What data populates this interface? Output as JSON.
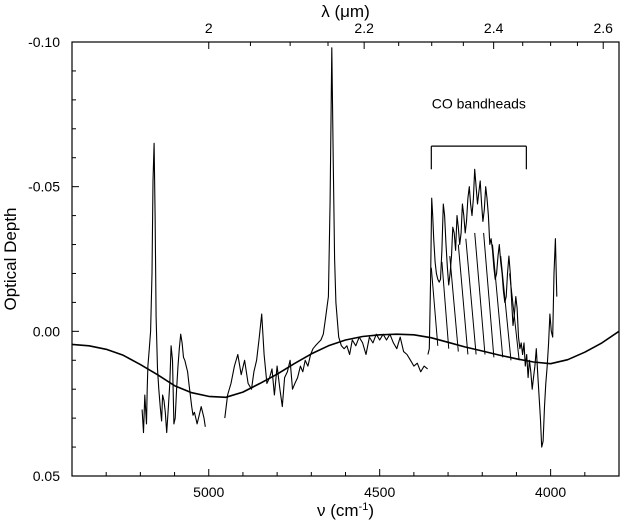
{
  "chart_data": {
    "type": "line",
    "title": "",
    "xlabel": "ν (cm",
    "xlabel_sup": "-1",
    "xlabel_close": ")",
    "top_xlabel": "λ (μm)",
    "ylabel": "Optical Depth",
    "xlim": [
      5400,
      3800
    ],
    "ylim": [
      0.05,
      -0.1
    ],
    "y_inverted": true,
    "grid": false,
    "x_ticks": [
      5000,
      4500,
      4000
    ],
    "x_tick_labels": [
      "5000",
      "4500",
      "4000"
    ],
    "y_ticks": [
      -0.1,
      -0.05,
      0.0,
      0.05
    ],
    "y_tick_labels": [
      "-0.10",
      "-0.05",
      "0.00",
      "0.05"
    ],
    "top_ticks": [
      2.0,
      2.2,
      2.4,
      2.6
    ],
    "top_tick_labels": [
      "2",
      "2.2",
      "2.4",
      "2.6"
    ],
    "annotation": {
      "text": "CO bandheads",
      "bracket_x": [
        4349,
        4071
      ],
      "bracket_y": -0.064,
      "bracket_tick": 0.008,
      "text_x": 4210,
      "text_y": -0.077
    },
    "series": [
      {
        "style": "smooth",
        "x": [
          5400,
          5350,
          5300,
          5250,
          5200,
          5150,
          5100,
          5050,
          5000,
          4950,
          4900,
          4850,
          4800,
          4750,
          4700,
          4650,
          4600,
          4550,
          4500,
          4450,
          4400,
          4350,
          4300,
          4250,
          4200,
          4150,
          4100,
          4050,
          4000,
          3950,
          3900,
          3850,
          3800
        ],
        "y": [
          0.0045,
          0.005,
          0.0062,
          0.0083,
          0.0115,
          0.015,
          0.0188,
          0.0212,
          0.0225,
          0.0228,
          0.021,
          0.018,
          0.0148,
          0.0112,
          0.0078,
          0.005,
          0.003,
          0.0018,
          0.0012,
          0.001,
          0.0012,
          0.0022,
          0.0038,
          0.0054,
          0.0068,
          0.0082,
          0.0095,
          0.0106,
          0.0112,
          0.0098,
          0.0072,
          0.004,
          0.0
        ]
      },
      {
        "style": "observed",
        "x": [
          5195,
          5191,
          5187,
          5182,
          5180,
          5178,
          5174,
          5170,
          5166,
          5163,
          5160,
          5157,
          5154,
          5150,
          5146,
          5142,
          5138,
          5135,
          5131,
          5127,
          5123,
          5118,
          5114,
          5110,
          5106,
          5102,
          5098,
          5094,
          5090,
          5086,
          5082,
          5078,
          5074,
          5070,
          5066,
          5062,
          5058,
          5054,
          5050,
          5046,
          5042,
          5038,
          5034,
          5030,
          5026,
          5022,
          5018,
          5014,
          5010
        ],
        "y": [
          0.027,
          0.035,
          0.022,
          0.032,
          0.02,
          0.012,
          0.006,
          0.0,
          -0.02,
          -0.052,
          -0.065,
          -0.04,
          -0.005,
          0.013,
          0.02,
          0.026,
          0.031,
          0.022,
          0.024,
          0.028,
          0.035,
          0.026,
          0.018,
          0.005,
          0.01,
          0.032,
          0.03,
          0.02,
          0.012,
          0.006,
          0.001,
          0.004,
          0.009,
          0.01,
          0.012,
          0.014,
          0.018,
          0.022,
          0.026,
          0.029,
          0.028,
          0.03,
          0.032,
          0.03,
          0.028,
          0.026,
          0.028,
          0.03,
          0.033
        ]
      },
      {
        "style": "observed",
        "x": [
          4953,
          4945,
          4935,
          4925,
          4915,
          4905,
          4895,
          4885,
          4875,
          4868,
          4860,
          4852,
          4845,
          4838,
          4830,
          4822,
          4815,
          4808,
          4800,
          4792,
          4785,
          4778,
          4770,
          4762,
          4755,
          4748,
          4740,
          4732,
          4725,
          4718,
          4710,
          4702,
          4695,
          4688,
          4680,
          4672,
          4665,
          4658,
          4650,
          4645,
          4640,
          4636,
          4632,
          4628,
          4624,
          4620,
          4612,
          4604,
          4596,
          4588,
          4580,
          4570,
          4560,
          4550,
          4540,
          4530,
          4520,
          4510,
          4500,
          4490,
          4480,
          4470,
          4460,
          4450,
          4440,
          4430,
          4420,
          4410,
          4400,
          4390,
          4380,
          4370,
          4360
        ],
        "y": [
          0.03,
          0.022,
          0.018,
          0.012,
          0.008,
          0.015,
          0.01,
          0.018,
          0.02,
          0.014,
          0.01,
          0.002,
          -0.006,
          0.008,
          0.018,
          0.016,
          0.013,
          0.022,
          0.012,
          0.02,
          0.026,
          0.016,
          0.014,
          0.01,
          0.02,
          0.018,
          0.016,
          0.012,
          0.014,
          0.01,
          0.012,
          0.008,
          0.006,
          0.005,
          0.004,
          0.003,
          0.001,
          -0.005,
          -0.012,
          -0.045,
          -0.098,
          -0.06,
          -0.025,
          -0.01,
          -0.004,
          0.002,
          0.005,
          0.006,
          0.005,
          0.008,
          0.003,
          0.005,
          0.002,
          0.004,
          0.008,
          0.002,
          0.004,
          0.001,
          0.003,
          0.001,
          0.003,
          0.001,
          0.004,
          0.006,
          0.002,
          0.007,
          0.008,
          0.01,
          0.012,
          0.011,
          0.014,
          0.012,
          0.013
        ]
      },
      {
        "style": "observed",
        "x": [
          4359,
          4355,
          4351,
          4348,
          4345,
          4342,
          4338,
          4334,
          4330,
          4326,
          4322,
          4318,
          4314,
          4310,
          4306,
          4302,
          4298,
          4294,
          4290,
          4286,
          4282,
          4278,
          4274,
          4270,
          4266,
          4262,
          4258,
          4254,
          4250,
          4246,
          4242,
          4238,
          4234,
          4230,
          4226,
          4222,
          4218,
          4214,
          4210,
          4206,
          4202,
          4198,
          4194,
          4190,
          4186,
          4182,
          4178,
          4174,
          4170,
          4166,
          4162,
          4158,
          4154,
          4150,
          4146,
          4142,
          4138,
          4134,
          4130,
          4126,
          4122,
          4118,
          4114,
          4110,
          4106,
          4102,
          4098,
          4094,
          4090,
          4086,
          4082,
          4078,
          4074,
          4070,
          4066,
          4062,
          4058,
          4054,
          4050,
          4046,
          4042,
          4038,
          4034,
          4030,
          4026,
          4022,
          4018,
          4014,
          4010,
          4006,
          4002,
          3998,
          3994,
          3990,
          3986,
          3982
        ],
        "y": [
          0.008,
          0.006,
          -0.018,
          -0.046,
          -0.04,
          -0.032,
          -0.024,
          -0.02,
          -0.018,
          -0.017,
          -0.018,
          -0.028,
          -0.044,
          -0.04,
          -0.03,
          -0.022,
          -0.016,
          -0.02,
          -0.026,
          -0.036,
          -0.034,
          -0.028,
          -0.04,
          -0.036,
          -0.03,
          -0.034,
          -0.044,
          -0.04,
          -0.034,
          -0.038,
          -0.046,
          -0.05,
          -0.044,
          -0.04,
          -0.046,
          -0.056,
          -0.05,
          -0.044,
          -0.048,
          -0.052,
          -0.044,
          -0.038,
          -0.042,
          -0.05,
          -0.046,
          -0.04,
          -0.03,
          -0.032,
          -0.028,
          -0.022,
          -0.018,
          -0.02,
          -0.026,
          -0.03,
          -0.024,
          -0.02,
          -0.014,
          -0.01,
          -0.012,
          -0.02,
          -0.026,
          -0.02,
          -0.01,
          -0.002,
          -0.006,
          -0.012,
          -0.008,
          0.002,
          0.006,
          0.004,
          0.008,
          0.004,
          0.012,
          0.008,
          0.016,
          0.01,
          0.014,
          0.02,
          0.016,
          0.012,
          0.006,
          0.014,
          0.022,
          0.03,
          0.04,
          0.038,
          0.026,
          0.018,
          0.012,
          0.004,
          -0.006,
          0.0,
          0.002,
          -0.02,
          -0.032,
          -0.012
        ]
      }
    ],
    "hatch_lines": [
      {
        "x": [
          4349,
          4330
        ],
        "y": [
          -0.022,
          0.005
        ]
      },
      {
        "x": [
          4318,
          4298
        ],
        "y": [
          -0.024,
          0.006
        ]
      },
      {
        "x": [
          4295,
          4270
        ],
        "y": [
          -0.026,
          0.007
        ]
      },
      {
        "x": [
          4270,
          4242
        ],
        "y": [
          -0.03,
          0.008
        ]
      },
      {
        "x": [
          4248,
          4218
        ],
        "y": [
          -0.032,
          0.008
        ]
      },
      {
        "x": [
          4222,
          4192
        ],
        "y": [
          -0.034,
          0.008
        ]
      },
      {
        "x": [
          4196,
          4166
        ],
        "y": [
          -0.034,
          0.009
        ]
      },
      {
        "x": [
          4170,
          4140
        ],
        "y": [
          -0.03,
          0.009
        ]
      },
      {
        "x": [
          4146,
          4116
        ],
        "y": [
          -0.026,
          0.01
        ]
      },
      {
        "x": [
          4120,
          4092
        ],
        "y": [
          -0.02,
          0.01
        ]
      }
    ]
  }
}
